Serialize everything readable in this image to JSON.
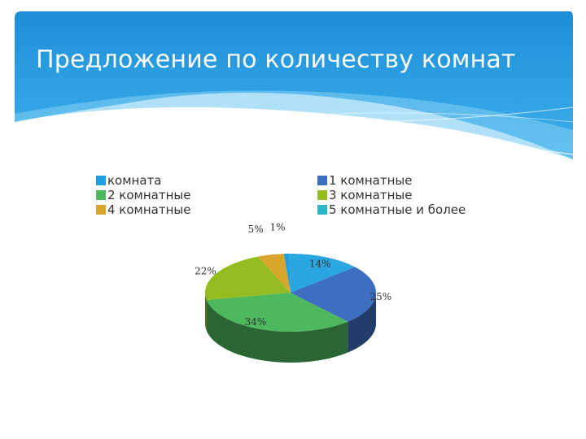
{
  "slide": {
    "title": "Предложение по количеству комнат"
  },
  "colors": {
    "header_blue": "#1f9be0",
    "header_blue_light": "#58bdf0"
  },
  "chart_data": {
    "type": "pie",
    "style": "3d",
    "legend_position": "top",
    "series": [
      {
        "values": [
          1,
          14,
          25,
          34,
          22,
          5
        ],
        "labels": [
          "1%",
          "14%",
          "25%",
          "34%",
          "22%",
          "5%"
        ],
        "categories": [
          "комната",
          "1 комнатные",
          "5 комнатные и более",
          "2 комнатные",
          "3 комнатные",
          "4 комнатные"
        ],
        "colors": [
          "#1f9fe0",
          "#2aa6e1",
          "#3c6fbf",
          "#4db85e",
          "#94bb1f",
          "#d9a52d"
        ]
      }
    ],
    "legend": [
      {
        "label": "комната",
        "color": "#1f9fe0"
      },
      {
        "label": "1 комнатные",
        "color": "#3c6fbf"
      },
      {
        "label": "2 комнатные",
        "color": "#4db85e"
      },
      {
        "label": "3 комнатные",
        "color": "#94bb1f"
      },
      {
        "label": "4 комнатные",
        "color": "#d9a52d"
      },
      {
        "label": "5 комнатные и более",
        "color": "#2bb7c6"
      }
    ]
  }
}
